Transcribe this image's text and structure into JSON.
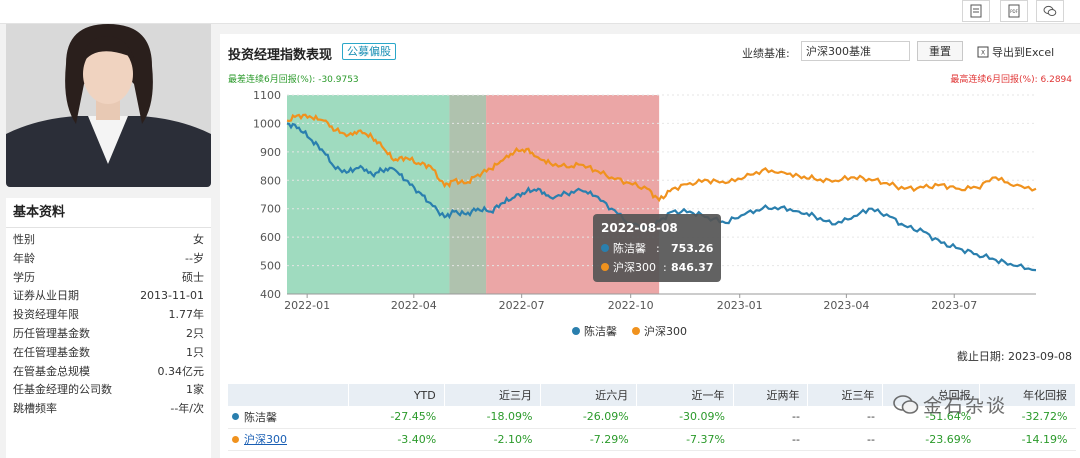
{
  "toolbar": {
    "icons": [
      "report-icon",
      "pdf-icon",
      "wechat-icon"
    ],
    "pdf_label": "PDF"
  },
  "profile": {
    "section_title": "基本资料",
    "rows": [
      {
        "label": "性别",
        "value": "女"
      },
      {
        "label": "年龄",
        "value": "--岁"
      },
      {
        "label": "学历",
        "value": "硕士"
      },
      {
        "label": "证券从业日期",
        "value": "2013-11-01"
      },
      {
        "label": "投资经理年限",
        "value": "1.77年"
      },
      {
        "label": "历任管理基金数",
        "value": "2只"
      },
      {
        "label": "在任管理基金数",
        "value": "1只"
      },
      {
        "label": "在管基金总规模",
        "value": "0.34亿元"
      },
      {
        "label": "任基金经理的公司数",
        "value": "1家"
      },
      {
        "label": "跳槽频率",
        "value": "--年/次"
      }
    ]
  },
  "panel": {
    "title": "投资经理指数表现",
    "tag": "公募偏股",
    "benchmark_label": "业绩基准:",
    "benchmark_value": "沪深300基准",
    "reset_label": "重置",
    "export_label": "导出到Excel",
    "worst_6m": "最差连续6月回报(%): -30.9753",
    "best_6m": "最高连续6月回报(%): 6.2894",
    "cutoff_date": "截止日期: 2023-09-08"
  },
  "chart_data": {
    "type": "line",
    "x_ticks": [
      "2022-01",
      "2022-04",
      "2022-07",
      "2022-10",
      "2023-01",
      "2023-04",
      "2023-07"
    ],
    "y_ticks": [
      400,
      500,
      600,
      700,
      800,
      900,
      1000,
      1100
    ],
    "ylim": [
      400,
      1100
    ],
    "xlim": [
      "2021-12-15",
      "2023-09-08"
    ],
    "shaded_periods": [
      {
        "start": "2021-12-15",
        "end": "2022-05-01",
        "color": "#5fc394"
      },
      {
        "start": "2022-05-01",
        "end": "2022-06-01",
        "color": "#7a9a78"
      },
      {
        "start": "2022-06-01",
        "end": "2022-10-25",
        "color": "#de6a6a"
      }
    ],
    "tooltip": {
      "date": "2022-08-08",
      "rows": [
        {
          "name": "陈洁馨",
          "value": "753.26"
        },
        {
          "name": "沪深300",
          "value": "846.37"
        }
      ]
    },
    "series": [
      {
        "name": "陈洁馨",
        "color": "#2a7fae",
        "points": [
          [
            "2021-12-15",
            1000
          ],
          [
            "2021-12-25",
            985
          ],
          [
            "2022-01-05",
            940
          ],
          [
            "2022-01-15",
            900
          ],
          [
            "2022-01-25",
            840
          ],
          [
            "2022-02-05",
            830
          ],
          [
            "2022-02-15",
            850
          ],
          [
            "2022-02-25",
            820
          ],
          [
            "2022-03-05",
            835
          ],
          [
            "2022-03-15",
            840
          ],
          [
            "2022-03-25",
            800
          ],
          [
            "2022-04-05",
            760
          ],
          [
            "2022-04-15",
            720
          ],
          [
            "2022-04-27",
            670
          ],
          [
            "2022-05-05",
            690
          ],
          [
            "2022-05-15",
            680
          ],
          [
            "2022-05-25",
            700
          ],
          [
            "2022-06-05",
            690
          ],
          [
            "2022-06-15",
            720
          ],
          [
            "2022-06-25",
            740
          ],
          [
            "2022-07-05",
            760
          ],
          [
            "2022-07-15",
            770
          ],
          [
            "2022-07-25",
            740
          ],
          [
            "2022-08-08",
            753
          ],
          [
            "2022-08-20",
            765
          ],
          [
            "2022-09-01",
            745
          ],
          [
            "2022-09-15",
            700
          ],
          [
            "2022-09-30",
            650
          ],
          [
            "2022-10-15",
            630
          ],
          [
            "2022-10-25",
            655
          ],
          [
            "2022-11-05",
            690
          ],
          [
            "2022-11-20",
            690
          ],
          [
            "2022-12-05",
            670
          ],
          [
            "2022-12-20",
            650
          ],
          [
            "2023-01-05",
            680
          ],
          [
            "2023-01-20",
            700
          ],
          [
            "2023-02-05",
            705
          ],
          [
            "2023-02-20",
            690
          ],
          [
            "2023-03-05",
            675
          ],
          [
            "2023-03-20",
            645
          ],
          [
            "2023-04-05",
            665
          ],
          [
            "2023-04-20",
            700
          ],
          [
            "2023-05-05",
            680
          ],
          [
            "2023-05-20",
            640
          ],
          [
            "2023-06-05",
            620
          ],
          [
            "2023-06-20",
            580
          ],
          [
            "2023-07-05",
            560
          ],
          [
            "2023-07-20",
            540
          ],
          [
            "2023-08-05",
            520
          ],
          [
            "2023-08-20",
            500
          ],
          [
            "2023-09-08",
            484
          ]
        ]
      },
      {
        "name": "沪深300",
        "color": "#f0921e",
        "points": [
          [
            "2021-12-15",
            1010
          ],
          [
            "2021-12-25",
            1030
          ],
          [
            "2022-01-05",
            1020
          ],
          [
            "2022-01-15",
            1010
          ],
          [
            "2022-01-25",
            975
          ],
          [
            "2022-02-05",
            960
          ],
          [
            "2022-02-15",
            975
          ],
          [
            "2022-02-25",
            950
          ],
          [
            "2022-03-05",
            920
          ],
          [
            "2022-03-15",
            870
          ],
          [
            "2022-03-25",
            880
          ],
          [
            "2022-04-05",
            860
          ],
          [
            "2022-04-15",
            850
          ],
          [
            "2022-04-27",
            780
          ],
          [
            "2022-05-05",
            800
          ],
          [
            "2022-05-15",
            790
          ],
          [
            "2022-05-25",
            820
          ],
          [
            "2022-06-05",
            840
          ],
          [
            "2022-06-15",
            870
          ],
          [
            "2022-06-25",
            900
          ],
          [
            "2022-07-05",
            910
          ],
          [
            "2022-07-15",
            880
          ],
          [
            "2022-07-25",
            860
          ],
          [
            "2022-08-08",
            846
          ],
          [
            "2022-08-20",
            855
          ],
          [
            "2022-09-01",
            835
          ],
          [
            "2022-09-15",
            810
          ],
          [
            "2022-09-30",
            790
          ],
          [
            "2022-10-15",
            770
          ],
          [
            "2022-10-25",
            730
          ],
          [
            "2022-11-05",
            770
          ],
          [
            "2022-11-20",
            790
          ],
          [
            "2022-12-05",
            800
          ],
          [
            "2022-12-20",
            790
          ],
          [
            "2023-01-05",
            810
          ],
          [
            "2023-01-20",
            835
          ],
          [
            "2023-02-05",
            830
          ],
          [
            "2023-02-20",
            815
          ],
          [
            "2023-03-05",
            805
          ],
          [
            "2023-03-20",
            795
          ],
          [
            "2023-04-05",
            810
          ],
          [
            "2023-04-20",
            805
          ],
          [
            "2023-05-05",
            790
          ],
          [
            "2023-05-20",
            770
          ],
          [
            "2023-06-05",
            775
          ],
          [
            "2023-06-20",
            785
          ],
          [
            "2023-07-05",
            770
          ],
          [
            "2023-07-20",
            775
          ],
          [
            "2023-08-05",
            810
          ],
          [
            "2023-08-20",
            780
          ],
          [
            "2023-09-08",
            770
          ]
        ]
      }
    ]
  },
  "table": {
    "headers": [
      "YTD",
      "近三月",
      "近六月",
      "近一年",
      "近两年",
      "近三年",
      "总回报",
      "年化回报"
    ],
    "rows": [
      {
        "name": "陈洁馨",
        "color": "#2a7fae",
        "values": [
          "-27.45%",
          "-18.09%",
          "-26.09%",
          "-30.09%",
          "--",
          "--",
          "-51.64%",
          "-32.72%"
        ]
      },
      {
        "name": "沪深300",
        "color": "#f0921e",
        "values": [
          "-3.40%",
          "-2.10%",
          "-7.29%",
          "-7.37%",
          "--",
          "--",
          "-23.69%",
          "-14.19%"
        ]
      }
    ]
  },
  "watermark": {
    "text": "金石杂谈"
  }
}
